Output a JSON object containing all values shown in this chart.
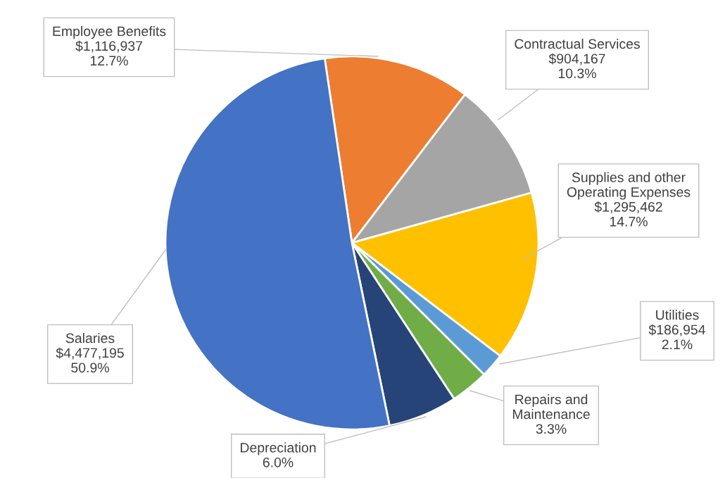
{
  "chart_data": {
    "type": "pie",
    "categories": [
      "Employee Benefits",
      "Contractual Services",
      "Supplies and other\nOperating Expenses",
      "Utilities",
      "Repairs and\nMaintenance",
      "Depreciation",
      "Salaries"
    ],
    "values": [
      12.7,
      10.3,
      14.7,
      2.1,
      3.3,
      6.0,
      50.9
    ],
    "value_labels": [
      "$1,116,937\n12.7%",
      "$904,167\n10.3%",
      "$1,295,462\n14.7%",
      "$186,954\n2.1%",
      "3.3%",
      "6.0%",
      "$4,477,195\n50.9%"
    ],
    "colors": [
      "#ed7d31",
      "#a5a5a5",
      "#ffc000",
      "#5b9bd5",
      "#70ad47",
      "#264478",
      "#4472c4"
    ],
    "legend": false
  }
}
